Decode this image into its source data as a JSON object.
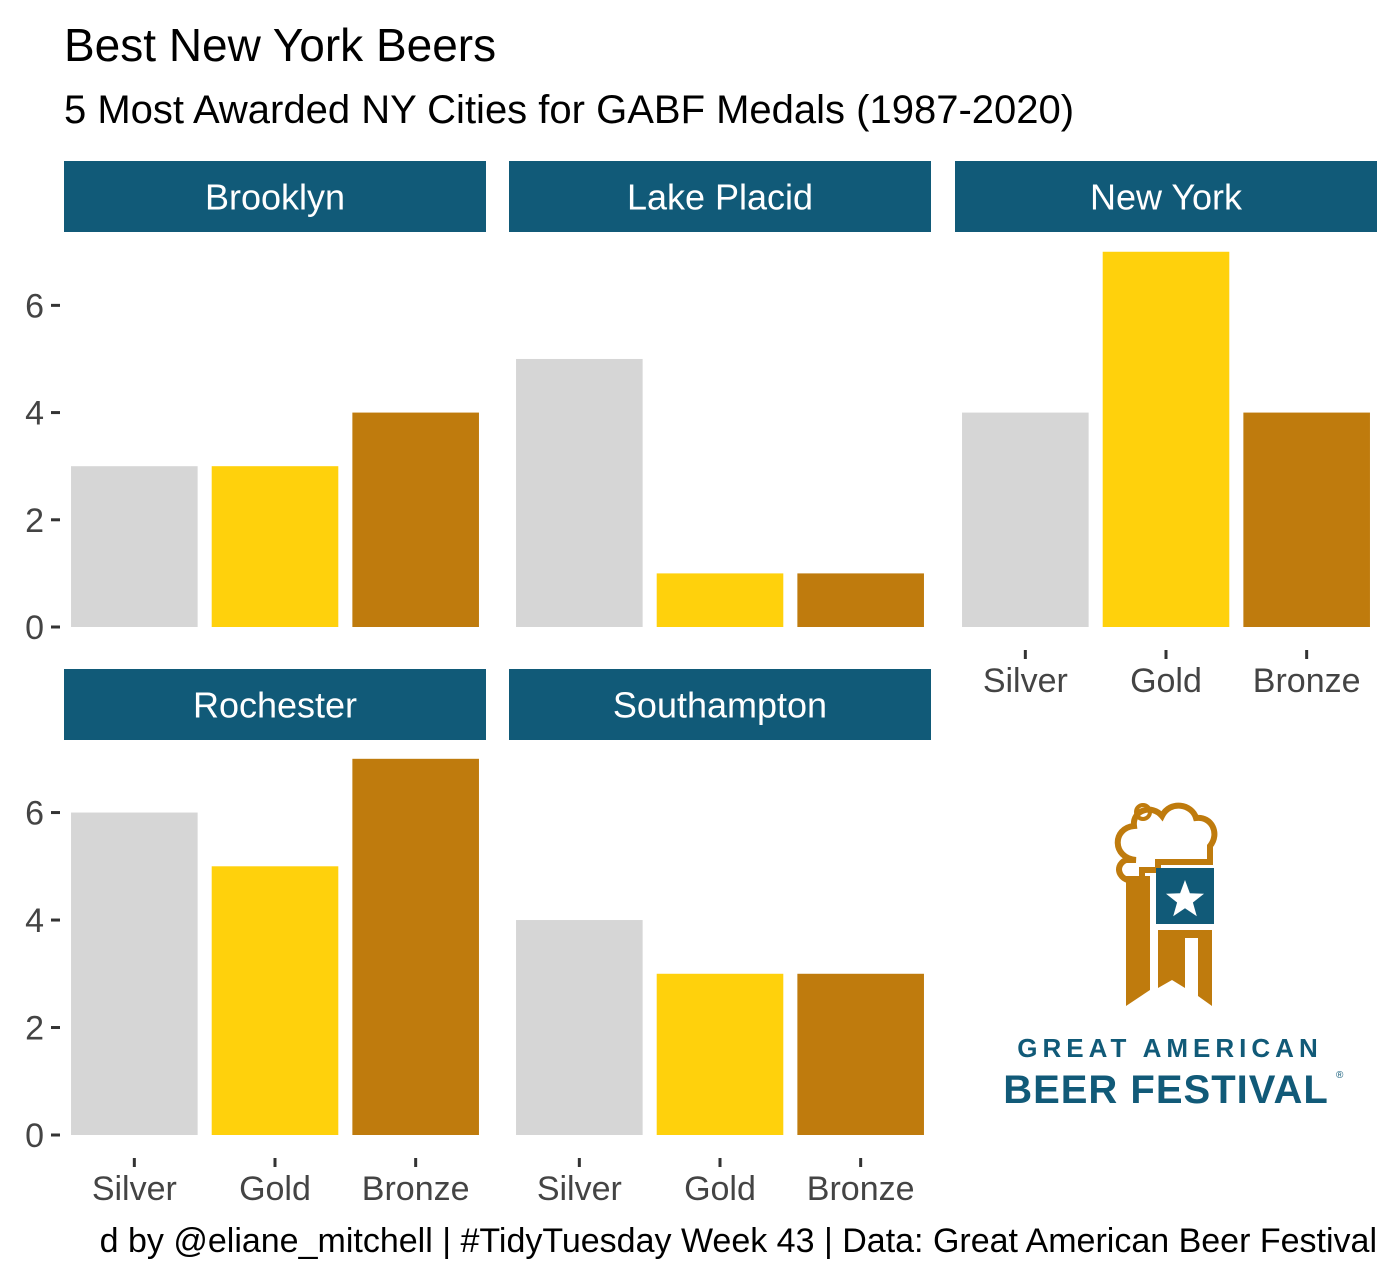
{
  "title": "Best New York Beers",
  "subtitle": "5 Most Awarded NY Cities for GABF Medals (1987-2020)",
  "caption": "d by @eliane_mitchell | #TidyTuesday Week 43 | Data: Great American Beer Festival",
  "logo": {
    "line1": "GREAT AMERICAN",
    "line2": "BEER FESTIVAL",
    "mark": "®"
  },
  "colors": {
    "strip": "#115A78",
    "strip_text": "#ffffff",
    "Silver": "#D6D6D6",
    "Gold": "#FFD10C",
    "Bronze": "#BF7B0D",
    "axis_text": "#444444"
  },
  "chart_data": {
    "type": "bar",
    "facet_by": "city",
    "categories": [
      "Silver",
      "Gold",
      "Bronze"
    ],
    "ylim": [
      0,
      7
    ],
    "y_ticks": [
      0,
      2,
      4,
      6
    ],
    "xlabel": "",
    "ylabel": "",
    "grid": false,
    "facets": [
      {
        "name": "Brooklyn",
        "values": [
          3,
          3,
          4
        ]
      },
      {
        "name": "Lake Placid",
        "values": [
          5,
          1,
          1
        ]
      },
      {
        "name": "New York",
        "values": [
          4,
          7,
          4
        ]
      },
      {
        "name": "Rochester",
        "values": [
          6,
          5,
          7
        ]
      },
      {
        "name": "Southampton",
        "values": [
          4,
          3,
          3
        ]
      }
    ]
  }
}
